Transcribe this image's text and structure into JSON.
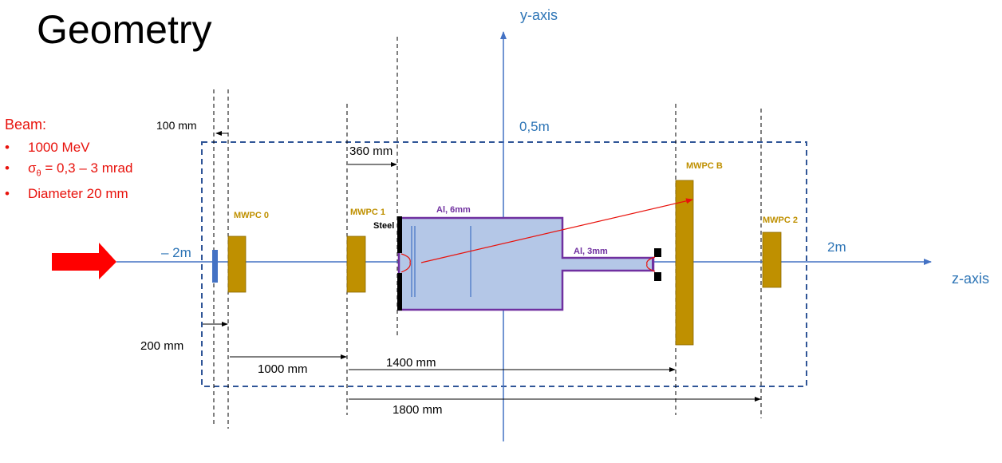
{
  "title": "Geometry",
  "beam": {
    "heading": "Beam:",
    "items": [
      {
        "text": "1000 MeV"
      },
      {
        "prefix": "σ",
        "sub": "θ",
        "text": " = 0,3 – 3 mrad"
      },
      {
        "text": "Diameter 20 mm"
      }
    ]
  },
  "axes": {
    "y_label": "y-axis",
    "z_label": "z-axis",
    "y_mark": "0,5m",
    "z_neg_mark": "– 2m",
    "z_pos_mark": "2m"
  },
  "detectors": {
    "mwpc0": "MWPC 0",
    "mwpc1": "MWPC 1",
    "mwpcB": "MWPC B",
    "mwpc2": "MWPC 2"
  },
  "materials": {
    "steel": "Steel",
    "al6": "Al, 6mm",
    "al3": "Al, 3mm"
  },
  "dimensions": {
    "d100": "100 mm",
    "d360": "360 mm",
    "d200": "200 mm",
    "d1000": "1000 mm",
    "d1400": "1400 mm",
    "d1800": "1800 mm"
  },
  "colors": {
    "axis_blue": "#4472c4",
    "label_blue": "#2e75b6",
    "beam_red": "#e8120c",
    "detector_gold": "#bf9000",
    "chamber_fill": "#b4c7e7",
    "chamber_border": "#7030a0",
    "box_dash": "#2f5597"
  }
}
